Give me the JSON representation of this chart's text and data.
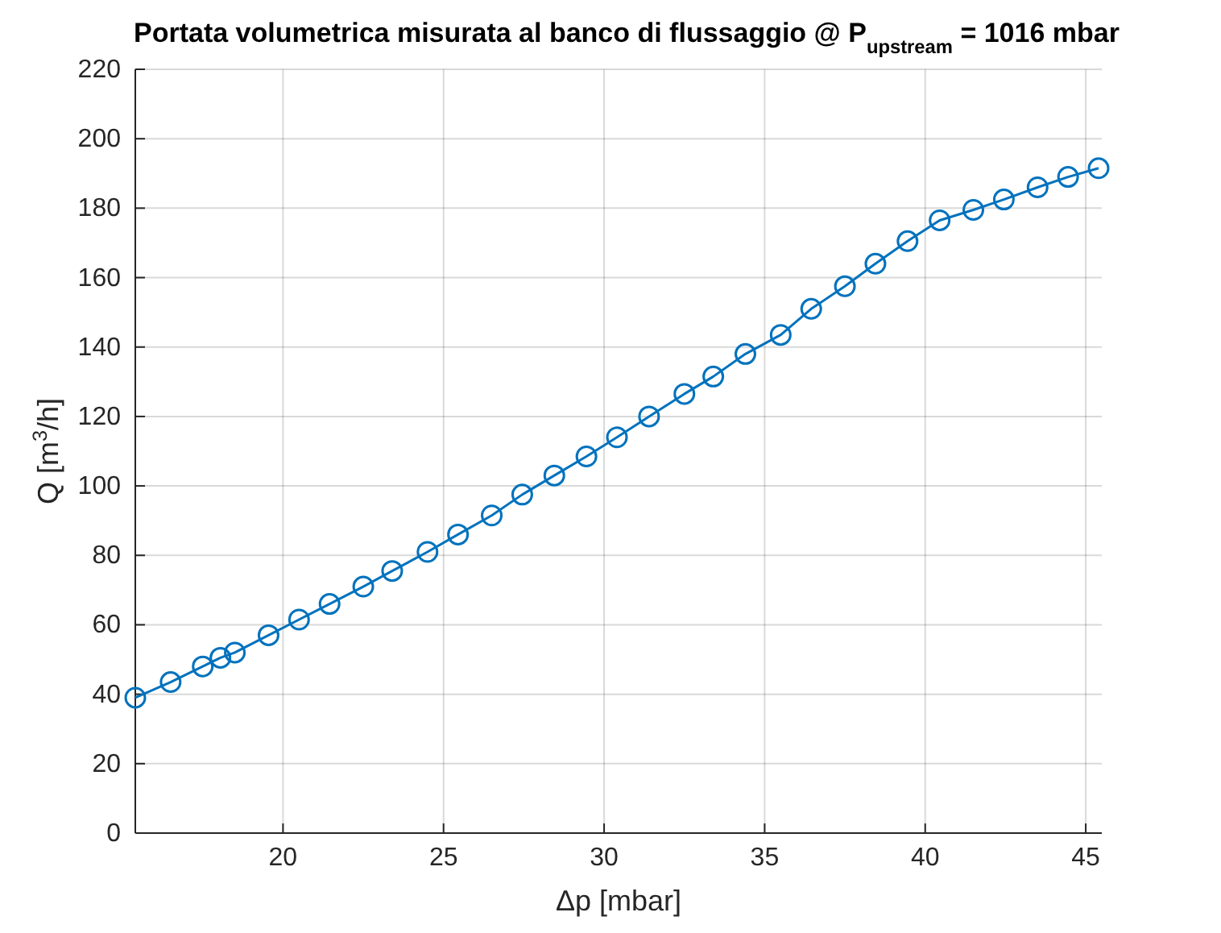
{
  "chart_data": {
    "type": "line",
    "title": "Portata volumetrica misurata al banco di flussaggio @ P$_{upstream}$ = 1016 mbar",
    "xlabel": "Δp [mbar]",
    "ylabel": "Q [m$^{3}$/h]",
    "x": [
      15.4,
      16.5,
      17.5,
      18.05,
      18.5,
      19.55,
      20.5,
      21.45,
      22.5,
      23.4,
      24.5,
      25.45,
      26.5,
      27.45,
      28.45,
      29.45,
      30.4,
      31.4,
      32.5,
      33.4,
      34.4,
      35.5,
      36.45,
      37.5,
      38.45,
      39.45,
      40.45,
      41.5,
      42.45,
      43.5,
      44.45,
      45.4
    ],
    "series": [
      {
        "color": "#0072bd",
        "values": [
          39,
          43.5,
          48,
          50.5,
          52,
          57,
          61.5,
          66,
          71,
          75.5,
          81,
          86,
          91.5,
          97.5,
          103,
          108.5,
          114,
          120,
          126.5,
          131.5,
          138,
          143.5,
          151,
          157.5,
          164,
          170.5,
          176.5,
          179.5,
          182.5,
          186,
          189,
          191.5
        ]
      }
    ],
    "xlim": [
      15.4,
      45.5
    ],
    "xticks": [
      20,
      25,
      30,
      35,
      40,
      45
    ],
    "ylim": [
      0,
      220
    ],
    "yticks": [
      0,
      20,
      40,
      60,
      80,
      100,
      120,
      140,
      160,
      180,
      200,
      220
    ],
    "grid": true,
    "marker": "circle",
    "line_style": "solid"
  }
}
